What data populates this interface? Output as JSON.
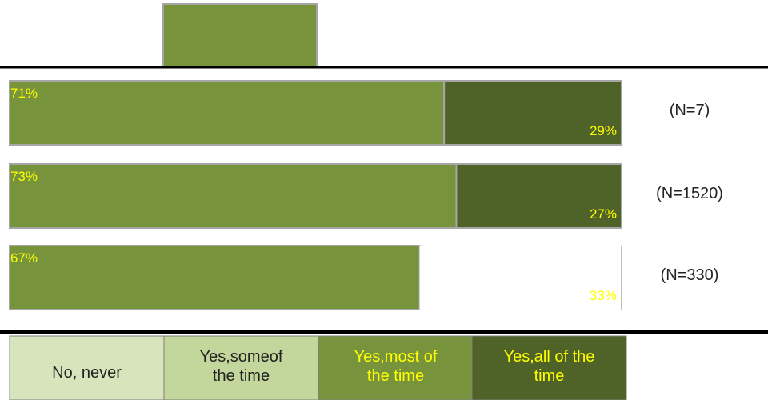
{
  "chart_data": {
    "type": "bar",
    "orientation": "horizontal",
    "stacked": true,
    "value_unit": "%",
    "categories": [
      "(N=7)",
      "(N=1520)",
      "(N=330)"
    ],
    "series": [
      {
        "name": "No, never",
        "values": [
          0,
          0,
          0
        ],
        "color": "#d8e4bc"
      },
      {
        "name": "Yes, some of the time",
        "values": [
          0,
          0,
          0
        ],
        "color": "#c3d69b"
      },
      {
        "name": "Yes, most of the time",
        "values": [
          71,
          73,
          67
        ],
        "color": "#77933c",
        "labels": [
          "71%",
          "73%",
          "67%"
        ]
      },
      {
        "name": "Yes, all of the time",
        "values": [
          29,
          27,
          33
        ],
        "color": "#4f6228",
        "labels": [
          "29%",
          "27%",
          "33%"
        ]
      }
    ],
    "legend": {
      "position": "bottom",
      "entries": [
        {
          "label_lines": [
            "No, never"
          ],
          "bg": "#d8e4bc",
          "text_color": "#222222"
        },
        {
          "label_lines": [
            "Yes,someof",
            "the time"
          ],
          "bg": "#c3d69b",
          "text_color": "#222222"
        },
        {
          "label_lines": [
            "Yes,most of",
            "the time"
          ],
          "bg": "#77933c",
          "text_color": "#ffff00"
        },
        {
          "label_lines": [
            "Yes,all of the",
            "time"
          ],
          "bg": "#4f6228",
          "text_color": "#ffff00"
        }
      ]
    },
    "xlim": [
      0,
      100
    ],
    "grid": false,
    "label_color": "#ffff00"
  }
}
